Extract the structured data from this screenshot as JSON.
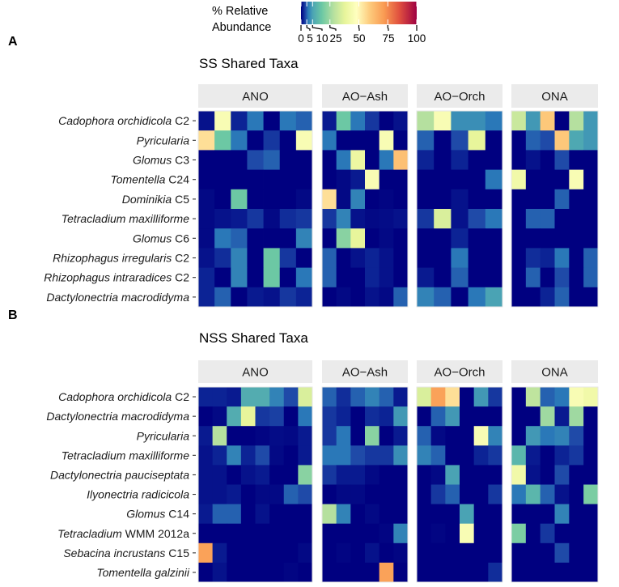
{
  "chart_data": {
    "type": "heatmap",
    "legend": {
      "title_lines": [
        "% Relative",
        "Abundance"
      ],
      "ticks": [
        0,
        5,
        10,
        25,
        50,
        75,
        100
      ],
      "range": [
        0,
        100
      ],
      "placement": "top-center",
      "colorscale": [
        {
          "value": 0,
          "color": "#000080"
        },
        {
          "value": 2,
          "color": "#0c2395"
        },
        {
          "value": 4,
          "color": "#1f4aa8"
        },
        {
          "value": 6,
          "color": "#2a78b8"
        },
        {
          "value": 10,
          "color": "#4aa3b4"
        },
        {
          "value": 18,
          "color": "#6cc8a4"
        },
        {
          "value": 28,
          "color": "#b5e09f"
        },
        {
          "value": 38,
          "color": "#e8f59b"
        },
        {
          "value": 48,
          "color": "#ffffbf"
        },
        {
          "value": 60,
          "color": "#fdc87a"
        },
        {
          "value": 72,
          "color": "#f99a52"
        },
        {
          "value": 85,
          "color": "#e0503f"
        },
        {
          "value": 100,
          "color": "#9e0142"
        }
      ]
    },
    "panels": [
      {
        "letter": "A",
        "title": "SS Shared Taxa",
        "rows": [
          {
            "italic": "Cadophora orchidicola",
            "plain": " C2"
          },
          {
            "italic": "Pyricularia",
            "plain": ""
          },
          {
            "italic": "Glomus",
            "plain": " C3"
          },
          {
            "italic": "Tomentella",
            "plain": " C24"
          },
          {
            "italic": "Dominikia",
            "plain": " C5"
          },
          {
            "italic": "Tetracladium maxilliforme",
            "plain": ""
          },
          {
            "italic": "Glomus",
            "plain": " C6"
          },
          {
            "italic": "Rhizophagus irregularis",
            "plain": " C2"
          },
          {
            "italic": "Rhizophagus intraradices",
            "plain": " C2"
          },
          {
            "italic": "Dactylonectria macrodidyma",
            "plain": ""
          }
        ],
        "facets": [
          {
            "name": "ANO",
            "values": [
              [
                1,
                45,
                2,
                6,
                0,
                6,
                5
              ],
              [
                55,
                18,
                6,
                0,
                3,
                0,
                45
              ],
              [
                0,
                0,
                0,
                4,
                5,
                0,
                0
              ],
              [
                0,
                0,
                0,
                0,
                0,
                0,
                0
              ],
              [
                0.5,
                0,
                18,
                0,
                0,
                0,
                0.5
              ],
              [
                0.5,
                1,
                1.5,
                3,
                0.5,
                2.5,
                3
              ],
              [
                0.5,
                6,
                5,
                0,
                0,
                0,
                7
              ],
              [
                1,
                2.5,
                7,
                0,
                18,
                3,
                0
              ],
              [
                2,
                0,
                7,
                0,
                18,
                0,
                6
              ],
              [
                2,
                5,
                0,
                1.5,
                1,
                3,
                2
              ]
            ]
          },
          {
            "name": "AO−Ash",
            "values": [
              [
                1.5,
                18,
                6,
                3,
                0,
                1
              ],
              [
                6,
                0,
                0,
                0,
                45,
                0
              ],
              [
                0,
                6,
                40,
                0,
                6,
                62
              ],
              [
                0,
                0.5,
                1.5,
                45,
                0,
                0
              ],
              [
                55,
                0.5,
                7,
                0,
                0.3,
                0
              ],
              [
                3,
                7,
                1,
                0.5,
                0.7,
                1
              ],
              [
                0,
                22,
                38,
                0,
                0.5,
                0
              ],
              [
                5,
                0,
                1,
                2,
                1,
                0
              ],
              [
                5,
                0,
                0,
                2,
                1,
                0
              ],
              [
                0,
                0.5,
                0,
                1,
                0.5,
                5
              ]
            ]
          },
          {
            "name": "AO−Orch",
            "values": [
              [
                28,
                45,
                8,
                8,
                6
              ],
              [
                5,
                0,
                4,
                38,
                0
              ],
              [
                2,
                0,
                2,
                0,
                0
              ],
              [
                0,
                0,
                0,
                0,
                6
              ],
              [
                0,
                0,
                1,
                0,
                0
              ],
              [
                3,
                35,
                1,
                4,
                6
              ],
              [
                0,
                0,
                2,
                0,
                0
              ],
              [
                0,
                0,
                6,
                0,
                0
              ],
              [
                1.5,
                0,
                5,
                0,
                0
              ],
              [
                7,
                5,
                0,
                6,
                10
              ]
            ]
          },
          {
            "name": "ONA",
            "values": [
              [
                32,
                9,
                60,
                0,
                28,
                9
              ],
              [
                0,
                5,
                4,
                60,
                11,
                9
              ],
              [
                0,
                1,
                0,
                4,
                0,
                0
              ],
              [
                42,
                0,
                0,
                0,
                45,
                0
              ],
              [
                0,
                0,
                0,
                5,
                0,
                0
              ],
              [
                0,
                5,
                5,
                0,
                0,
                0
              ],
              [
                0,
                0,
                0,
                0,
                0,
                0
              ],
              [
                0,
                2.5,
                2,
                6,
                0,
                5
              ],
              [
                0,
                5,
                0,
                4,
                0,
                5
              ],
              [
                0,
                0,
                2,
                5,
                0,
                0
              ]
            ]
          }
        ]
      },
      {
        "letter": "B",
        "title": "NSS Shared Taxa",
        "rows": [
          {
            "italic": "Cadophora orchidicola",
            "plain": " C2"
          },
          {
            "italic": "Dactylonectria macrodidyma",
            "plain": ""
          },
          {
            "italic": "Pyricularia",
            "plain": ""
          },
          {
            "italic": "Tetracladium maxilliforme",
            "plain": ""
          },
          {
            "italic": "Dactylonectria pauciseptata",
            "plain": ""
          },
          {
            "italic": "Ilyonectria radicicola",
            "plain": ""
          },
          {
            "italic": "Glomus",
            "plain": " C14"
          },
          {
            "italic": "Tetracladium",
            "plain": " WMM 2012a"
          },
          {
            "italic": "Sebacina incrustans",
            "plain": " C15"
          },
          {
            "italic": "Tomentella galzinii",
            "plain": ""
          }
        ],
        "facets": [
          {
            "name": "ANO",
            "values": [
              [
                2,
                2,
                1.5,
                12,
                12,
                7,
                4,
                35
              ],
              [
                0,
                0.5,
                12,
                38,
                3,
                3.5,
                0,
                6
              ],
              [
                1.5,
                28,
                0,
                0,
                0.3,
                0.7,
                0.5,
                1.5
              ],
              [
                1,
                2,
                7,
                2,
                4,
                0.5,
                0,
                1.5
              ],
              [
                1,
                1,
                0,
                1,
                1.5,
                0,
                0,
                22
              ],
              [
                1,
                1,
                1.5,
                0,
                0.5,
                0.5,
                5,
                4
              ],
              [
                1.5,
                5,
                5,
                0,
                1,
                0,
                0,
                0
              ],
              [
                0,
                0,
                0,
                0,
                0,
                0,
                0,
                0
              ],
              [
                70,
                1.5,
                0,
                0,
                0,
                0,
                0,
                0.5
              ],
              [
                0,
                1,
                0,
                0,
                0,
                0,
                0.3,
                0
              ]
            ]
          },
          {
            "name": "AO−Ash",
            "values": [
              [
                5,
                2.5,
                5,
                7,
                5,
                1.5
              ],
              [
                3,
                2,
                0,
                2.5,
                2,
                9
              ],
              [
                3,
                6,
                0,
                22,
                0,
                1.5
              ],
              [
                6,
                6,
                4,
                3,
                3,
                8
              ],
              [
                3,
                1.5,
                1.5,
                0.5,
                0,
                0
              ],
              [
                0,
                0.5,
                0.5,
                0,
                0,
                0
              ],
              [
                28,
                7,
                0,
                0.5,
                0,
                0
              ],
              [
                0,
                0,
                0,
                0,
                0.3,
                7
              ],
              [
                0,
                0.3,
                0,
                1,
                0,
                0.3
              ],
              [
                0,
                0,
                0,
                0,
                70,
                0
              ]
            ]
          },
          {
            "name": "AO−Orch",
            "values": [
              [
                35,
                70,
                55,
                0,
                9,
                3
              ],
              [
                0,
                5,
                9,
                0,
                0,
                0
              ],
              [
                5,
                0.5,
                0,
                0,
                45,
                7
              ],
              [
                7,
                5,
                0,
                0,
                2,
                3
              ],
              [
                0,
                0.5,
                10,
                0,
                0,
                0
              ],
              [
                0,
                3,
                5,
                0,
                0,
                3
              ],
              [
                0,
                0,
                0,
                10,
                0,
                0
              ],
              [
                0,
                0.3,
                0,
                45,
                0,
                0
              ],
              [
                0,
                0,
                0,
                0,
                0,
                0
              ],
              [
                0,
                0,
                0,
                0,
                0,
                2.5
              ]
            ]
          },
          {
            "name": "ONA",
            "values": [
              [
                0,
                30,
                5,
                6,
                45,
                42
              ],
              [
                0,
                0,
                25,
                1.5,
                25,
                0
              ],
              [
                0,
                9,
                6,
                7,
                4,
                0
              ],
              [
                14,
                1.5,
                0,
                2,
                3,
                0
              ],
              [
                42,
                1,
                0,
                4,
                0,
                0
              ],
              [
                6,
                14,
                5,
                1,
                0,
                20
              ],
              [
                0,
                0,
                0,
                7,
                0,
                0
              ],
              [
                20,
                0,
                3,
                0,
                0,
                0
              ],
              [
                0,
                0,
                0,
                4,
                0,
                0
              ],
              [
                0,
                0,
                0,
                0,
                0,
                0
              ]
            ]
          }
        ]
      }
    ]
  }
}
